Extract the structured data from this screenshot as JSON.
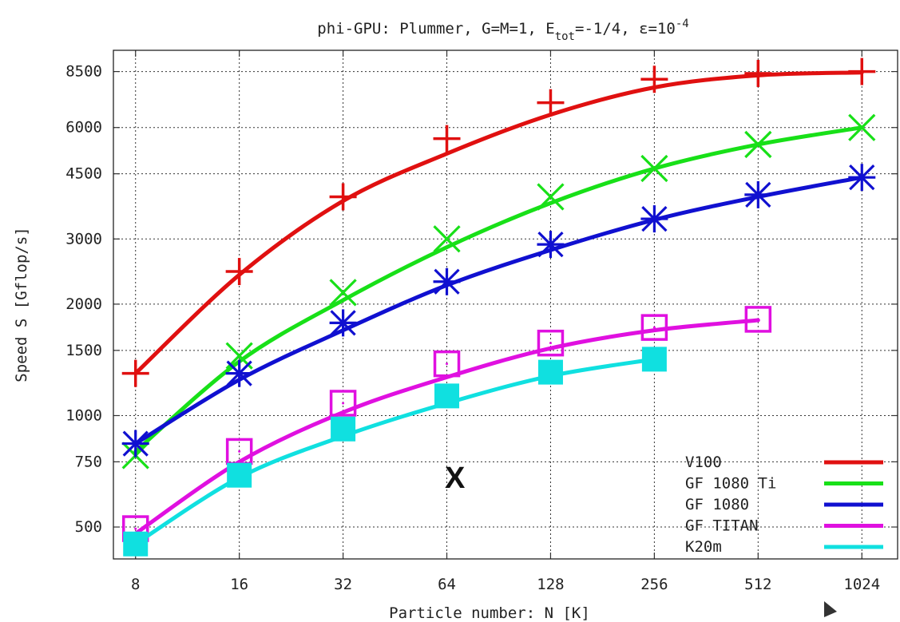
{
  "chart_data": {
    "type": "line",
    "title": {
      "main": "phi-GPU: Plummer, G=M=1, E",
      "sub": "tot",
      "mid": "=-1/4, ε=10",
      "sup": "-4"
    },
    "xlabel": "Particle number: N [K]",
    "ylabel": "Speed S [Gflop/s]",
    "x_scale": "log2",
    "y_scale": "log",
    "x": [
      8,
      16,
      32,
      64,
      128,
      256,
      512,
      1024
    ],
    "x_tick_labels": [
      "8",
      "16",
      "32",
      "64",
      "128",
      "256",
      "512",
      "1024"
    ],
    "y_ticks": [
      500,
      750,
      1000,
      1500,
      2000,
      3000,
      4500,
      6000,
      8500
    ],
    "y_tick_labels": [
      "500",
      "750",
      "1000",
      "1500",
      "2000",
      "3000",
      "4500",
      "6000",
      "8500"
    ],
    "xlim": [
      6.9,
      1300
    ],
    "ylim": [
      410,
      9700
    ],
    "grid": true,
    "legend_position": "bottom-right",
    "series": [
      {
        "name": "V100",
        "color": "#e01010",
        "marker": "plus",
        "points": [
          [
            8,
            1300
          ],
          [
            16,
            2450
          ],
          [
            32,
            3900
          ],
          [
            64,
            5600
          ],
          [
            128,
            7000
          ],
          [
            256,
            8100
          ],
          [
            512,
            8400
          ],
          [
            1024,
            8500
          ]
        ],
        "fit": [
          [
            8,
            1300
          ],
          [
            16,
            2400
          ],
          [
            32,
            3800
          ],
          [
            64,
            5100
          ],
          [
            128,
            6500
          ],
          [
            256,
            7700
          ],
          [
            512,
            8300
          ],
          [
            1024,
            8450
          ]
        ]
      },
      {
        "name": "GF 1080 Ti",
        "color": "#18e018",
        "marker": "cross",
        "points": [
          [
            8,
            780
          ],
          [
            16,
            1450
          ],
          [
            32,
            2150
          ],
          [
            64,
            3000
          ],
          [
            128,
            3900
          ],
          [
            256,
            4650
          ],
          [
            512,
            5400
          ],
          [
            1024,
            6000
          ]
        ],
        "fit": [
          [
            8,
            800
          ],
          [
            16,
            1400
          ],
          [
            32,
            2050
          ],
          [
            64,
            2850
          ],
          [
            128,
            3750
          ],
          [
            256,
            4650
          ],
          [
            512,
            5400
          ],
          [
            1024,
            6000
          ]
        ]
      },
      {
        "name": "GF 1080",
        "color": "#1010d0",
        "marker": "asterisk",
        "points": [
          [
            8,
            840
          ],
          [
            16,
            1300
          ],
          [
            32,
            1780
          ],
          [
            64,
            2300
          ],
          [
            128,
            2900
          ],
          [
            256,
            3400
          ],
          [
            512,
            3950
          ],
          [
            1024,
            4400
          ]
        ],
        "fit": [
          [
            8,
            840
          ],
          [
            16,
            1250
          ],
          [
            32,
            1700
          ],
          [
            64,
            2250
          ],
          [
            128,
            2800
          ],
          [
            256,
            3380
          ],
          [
            512,
            3900
          ],
          [
            1024,
            4400
          ]
        ]
      },
      {
        "name": "GF TITAN",
        "color": "#e010e0",
        "marker": "open-square",
        "points": [
          [
            8,
            495
          ],
          [
            16,
            800
          ],
          [
            32,
            1080
          ],
          [
            64,
            1380
          ],
          [
            128,
            1570
          ],
          [
            256,
            1730
          ],
          [
            512,
            1820
          ]
        ],
        "fit": [
          [
            8,
            480
          ],
          [
            16,
            750
          ],
          [
            32,
            1020
          ],
          [
            64,
            1270
          ],
          [
            128,
            1520
          ],
          [
            256,
            1700
          ],
          [
            512,
            1810
          ]
        ]
      },
      {
        "name": "K20m",
        "color": "#10e0e0",
        "marker": "filled-square",
        "points": [
          [
            8,
            450
          ],
          [
            16,
            690
          ],
          [
            32,
            920
          ],
          [
            64,
            1130
          ],
          [
            128,
            1310
          ],
          [
            256,
            1420
          ]
        ],
        "fit": [
          [
            8,
            450
          ],
          [
            16,
            680
          ],
          [
            32,
            880
          ],
          [
            64,
            1080
          ],
          [
            128,
            1280
          ],
          [
            256,
            1420
          ]
        ]
      }
    ]
  },
  "overlay": {
    "x_mark": "X"
  }
}
